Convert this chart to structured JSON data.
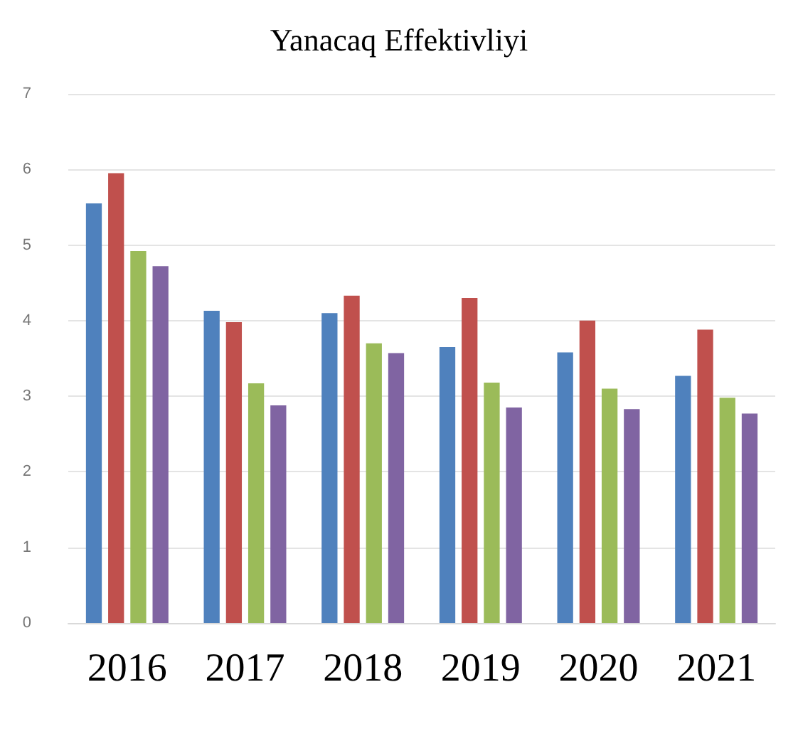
{
  "chart_data": {
    "type": "bar",
    "title": "Yanacaq Effektivliyi",
    "categories": [
      "2016",
      "2017",
      "2018",
      "2019",
      "2020",
      "2021"
    ],
    "series": [
      {
        "color": "#4f81bd",
        "values": [
          5.55,
          4.13,
          4.1,
          3.65,
          3.58,
          3.27
        ]
      },
      {
        "color": "#c0504d",
        "values": [
          5.95,
          3.98,
          4.33,
          4.3,
          4.0,
          3.88
        ]
      },
      {
        "color": "#9bbb59",
        "values": [
          4.92,
          3.17,
          3.7,
          3.18,
          3.1,
          2.98
        ]
      },
      {
        "color": "#8064a2",
        "values": [
          4.72,
          2.88,
          3.57,
          2.85,
          2.83,
          2.77
        ]
      }
    ],
    "ylim": [
      0,
      7
    ],
    "yticks": [
      0,
      1,
      2,
      3,
      4,
      5,
      6,
      7
    ],
    "grid": "y"
  }
}
